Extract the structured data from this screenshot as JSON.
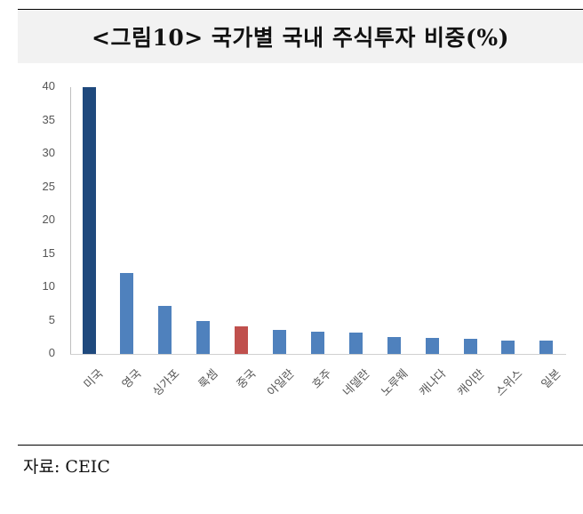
{
  "header": {
    "title": "<그림10> 국가별 국내 주식투자 비중(%)"
  },
  "footer": {
    "source": "자료: CEIC"
  },
  "colors": {
    "highlight_us": "#1f497d",
    "default": "#4f81bd",
    "highlight_china": "#c0504d"
  },
  "chart_data": {
    "type": "bar",
    "title": "<그림10> 국가별 국내 주식투자 비중(%)",
    "xlabel": "",
    "ylabel": "",
    "ylim": [
      0,
      40
    ],
    "yticks": [
      0,
      5,
      10,
      15,
      20,
      25,
      30,
      35,
      40
    ],
    "grid": false,
    "legend": null,
    "categories": [
      "미국",
      "영국",
      "싱가포",
      "룩셈",
      "중국",
      "아일란",
      "호주",
      "네델란",
      "노루웨",
      "캐나다",
      "캐이만",
      "스위스",
      "일본"
    ],
    "values": [
      40.0,
      12.1,
      7.2,
      4.9,
      4.1,
      3.6,
      3.4,
      3.2,
      2.6,
      2.4,
      2.3,
      2.0,
      2.0
    ],
    "bar_colors": [
      "#1f497d",
      "#4f81bd",
      "#4f81bd",
      "#4f81bd",
      "#c0504d",
      "#4f81bd",
      "#4f81bd",
      "#4f81bd",
      "#4f81bd",
      "#4f81bd",
      "#4f81bd",
      "#4f81bd",
      "#4f81bd"
    ],
    "source": "자료: CEIC"
  }
}
